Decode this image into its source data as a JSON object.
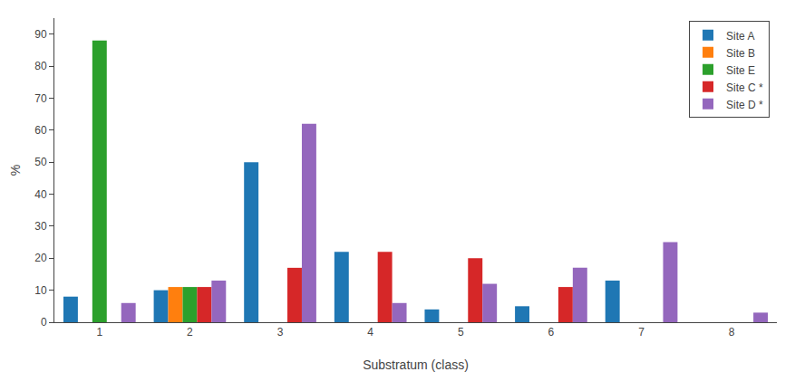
{
  "chart_data": {
    "type": "bar",
    "xlabel": "Substratum (class)",
    "ylabel": "%",
    "categories": [
      "1",
      "2",
      "3",
      "4",
      "5",
      "6",
      "7",
      "8"
    ],
    "series": [
      {
        "name": "Site A",
        "values": [
          8,
          10,
          50,
          22,
          4,
          5,
          13,
          0
        ]
      },
      {
        "name": "Site B",
        "values": [
          0,
          11,
          0,
          0,
          0,
          0,
          0,
          0
        ]
      },
      {
        "name": "Site E",
        "values": [
          88,
          11,
          0,
          0,
          0,
          0,
          0,
          0
        ]
      },
      {
        "name": "Site C *",
        "values": [
          0,
          11,
          17,
          22,
          20,
          11,
          0,
          0
        ]
      },
      {
        "name": "Site D *",
        "values": [
          6,
          13,
          62,
          6,
          12,
          17,
          25,
          3
        ]
      }
    ],
    "ylim": [
      0,
      95
    ],
    "yticks": [
      0,
      10,
      20,
      30,
      40,
      50,
      60,
      70,
      80,
      90
    ],
    "grid": false,
    "legend": "upper right"
  }
}
